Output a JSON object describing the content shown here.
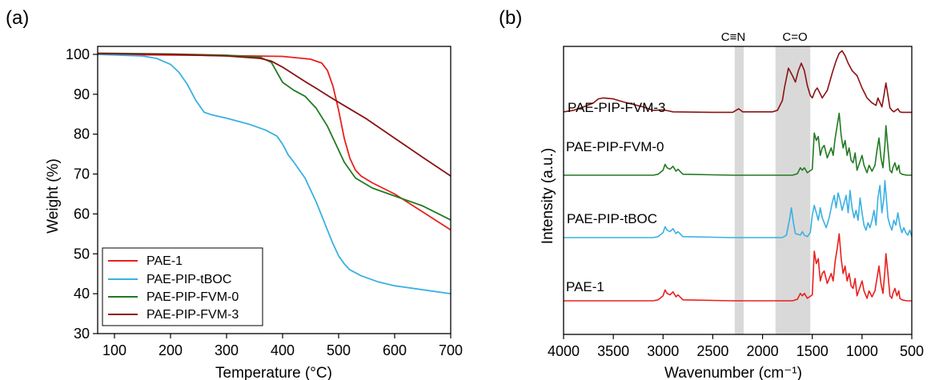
{
  "panels": {
    "a": {
      "label": "(a)"
    },
    "b": {
      "label": "(b)"
    }
  },
  "chart_data": [
    {
      "type": "line",
      "panel": "(a)",
      "xlabel": "Temperature (°C)",
      "ylabel": "Weight (%)",
      "xlim": [
        70,
        700
      ],
      "ylim": [
        30,
        102
      ],
      "xticks": [
        100,
        200,
        300,
        400,
        500,
        600,
        700
      ],
      "yticks": [
        30,
        40,
        50,
        60,
        70,
        80,
        90,
        100
      ],
      "legend_position": "bottom-left",
      "series": [
        {
          "name": "PAE-1",
          "color": "#e8201d",
          "x": [
            70,
            150,
            300,
            400,
            450,
            470,
            480,
            490,
            500,
            510,
            520,
            530,
            540,
            560,
            600,
            650,
            700
          ],
          "y": [
            100,
            99.9,
            99.7,
            99.5,
            98.8,
            97.8,
            96,
            92,
            86,
            79,
            74,
            71,
            69.5,
            67.8,
            65,
            60.5,
            56
          ]
        },
        {
          "name": "PAE-PIP-tBOC",
          "color": "#3ab0e2",
          "x": [
            70,
            150,
            175,
            200,
            215,
            230,
            245,
            260,
            275,
            300,
            340,
            370,
            390,
            400,
            410,
            420,
            430,
            440,
            450,
            460,
            470,
            480,
            490,
            500,
            510,
            520,
            540,
            570,
            600,
            650,
            700
          ],
          "y": [
            100,
            99.6,
            99,
            97.5,
            95.5,
            92.5,
            88.5,
            85.5,
            84.8,
            84,
            82.5,
            81,
            79.5,
            77.5,
            74.8,
            73,
            71,
            69,
            66,
            63,
            59.5,
            56,
            52.5,
            49.5,
            47.5,
            46,
            44.5,
            43,
            42,
            41,
            40
          ]
        },
        {
          "name": "PAE-PIP-FVM-0",
          "color": "#217a21",
          "x": [
            70,
            200,
            300,
            360,
            380,
            390,
            400,
            420,
            440,
            460,
            480,
            500,
            510,
            530,
            560,
            600,
            650,
            700
          ],
          "y": [
            100.3,
            100.1,
            99.8,
            99.3,
            98,
            95.5,
            93,
            91,
            89.5,
            86.5,
            82,
            76,
            73,
            69,
            66.5,
            64.5,
            62,
            58.5
          ]
        },
        {
          "name": "PAE-PIP-FVM-3",
          "color": "#8b1212",
          "x": [
            70,
            200,
            300,
            360,
            380,
            400,
            420,
            440,
            460,
            480,
            500,
            550,
            600,
            650,
            700
          ],
          "y": [
            100.2,
            100,
            99.6,
            99,
            98.3,
            96.8,
            95,
            93.2,
            91.5,
            89.7,
            88,
            83.8,
            79,
            74.2,
            69.5
          ]
        }
      ]
    },
    {
      "type": "line",
      "panel": "(b)",
      "xlabel": "Wavenumber (cm⁻¹)",
      "ylabel": "Intensity (a.u.)",
      "xlim": [
        4000,
        500
      ],
      "x_reversed": true,
      "xticks": [
        4000,
        3500,
        3000,
        2500,
        2000,
        1500,
        1000,
        500
      ],
      "y_ticks_shown": false,
      "shaded_bands": [
        {
          "label": "C≡N",
          "range": [
            2280,
            2190
          ]
        },
        {
          "label": "C=O",
          "range": [
            1870,
            1520
          ]
        }
      ],
      "series": [
        {
          "name": "PAE-PIP-FVM-3",
          "color": "#8b1212",
          "offset": 3,
          "x": [
            4000,
            3900,
            3800,
            3700,
            3650,
            3600,
            3500,
            3400,
            3200,
            3100,
            3000,
            2950,
            2900,
            2500,
            2300,
            2240,
            2200,
            1900,
            1850,
            1800,
            1780,
            1740,
            1700,
            1670,
            1640,
            1610,
            1580,
            1550,
            1520,
            1500,
            1470,
            1450,
            1420,
            1400,
            1350,
            1300,
            1260,
            1230,
            1200,
            1170,
            1140,
            1100,
            1050,
            1000,
            950,
            900,
            860,
            840,
            800,
            780,
            760,
            740,
            720,
            700,
            680,
            640,
            620,
            600,
            550,
            500
          ],
          "y": [
            0.02,
            0.05,
            0.12,
            0.2,
            0.28,
            0.3,
            0.28,
            0.22,
            0.12,
            0.05,
            0.06,
            0.04,
            0.02,
            0.01,
            0.01,
            0.08,
            0.02,
            0.02,
            0.05,
            0.25,
            0.5,
            0.9,
            0.75,
            0.62,
            0.85,
            1.0,
            0.85,
            0.55,
            0.35,
            0.3,
            0.45,
            0.5,
            0.38,
            0.3,
            0.45,
            0.8,
            1.05,
            1.2,
            1.25,
            1.15,
            1.0,
            0.85,
            0.75,
            0.5,
            0.3,
            0.2,
            0.15,
            0.3,
            0.12,
            0.35,
            0.6,
            0.35,
            0.1,
            0.05,
            0.02,
            0.08,
            0.02,
            0.01,
            0.01,
            0.01
          ]
        },
        {
          "name": "PAE-PIP-FVM-0",
          "color": "#217a21",
          "offset": 2,
          "x": [
            4000,
            3100,
            3050,
            3000,
            2980,
            2960,
            2930,
            2900,
            2870,
            2850,
            2800,
            2300,
            1700,
            1650,
            1620,
            1600,
            1580,
            1550,
            1500,
            1480,
            1460,
            1440,
            1420,
            1400,
            1380,
            1350,
            1310,
            1290,
            1270,
            1250,
            1230,
            1210,
            1190,
            1170,
            1150,
            1130,
            1110,
            1090,
            1070,
            1050,
            1020,
            1000,
            980,
            950,
            930,
            900,
            870,
            850,
            830,
            810,
            790,
            770,
            760,
            740,
            720,
            700,
            690,
            670,
            650,
            630,
            620,
            600,
            550,
            500
          ],
          "y": [
            0,
            0,
            0.02,
            0.1,
            0.22,
            0.15,
            0.12,
            0.18,
            0.08,
            0.12,
            0.02,
            0,
            0,
            0.03,
            0.15,
            0.1,
            0.15,
            0.05,
            0.12,
            0.85,
            0.7,
            0.78,
            0.4,
            0.55,
            0.6,
            0.35,
            0.55,
            0.4,
            0.75,
            1.0,
            1.25,
            0.8,
            0.55,
            0.7,
            0.4,
            0.55,
            0.3,
            0.25,
            0.45,
            0.1,
            0.28,
            0.4,
            0.2,
            0.05,
            0.2,
            0.08,
            0.2,
            0.5,
            0.75,
            0.35,
            0.15,
            0.6,
            1.0,
            0.55,
            0.1,
            0.05,
            0.15,
            0.25,
            0.1,
            0.2,
            0.05,
            0.02,
            0,
            0
          ]
        },
        {
          "name": "PAE-PIP-tBOC",
          "color": "#3ab0e2",
          "offset": 1,
          "x": [
            4000,
            3100,
            3050,
            3000,
            2980,
            2960,
            2930,
            2900,
            2870,
            2850,
            2800,
            2300,
            1800,
            1760,
            1730,
            1710,
            1690,
            1670,
            1620,
            1600,
            1580,
            1550,
            1520,
            1500,
            1480,
            1460,
            1440,
            1420,
            1400,
            1380,
            1360,
            1330,
            1300,
            1280,
            1260,
            1240,
            1220,
            1200,
            1180,
            1160,
            1140,
            1120,
            1100,
            1080,
            1060,
            1040,
            1020,
            1000,
            980,
            960,
            940,
            920,
            900,
            880,
            860,
            840,
            820,
            800,
            780,
            770,
            760,
            740,
            720,
            700,
            680,
            660,
            640,
            620,
            600,
            580,
            560,
            540,
            520,
            500
          ],
          "y": [
            0,
            0,
            0.02,
            0.1,
            0.22,
            0.15,
            0.12,
            0.18,
            0.08,
            0.12,
            0.02,
            0,
            0,
            0.05,
            0.35,
            0.6,
            0.3,
            0.08,
            0.05,
            0.12,
            0.05,
            0.02,
            0.1,
            0.45,
            0.65,
            0.5,
            0.35,
            0.6,
            0.4,
            0.3,
            0.2,
            0.4,
            0.7,
            0.85,
            0.6,
            0.9,
            0.75,
            0.55,
            0.7,
            0.85,
            0.5,
            0.95,
            0.6,
            0.4,
            0.55,
            0.35,
            0.8,
            0.5,
            0.25,
            0.15,
            0.3,
            0.2,
            0.35,
            0.55,
            0.25,
            0.8,
            1.05,
            0.5,
            0.8,
            1.15,
            0.9,
            0.4,
            0.25,
            0.15,
            0.35,
            0.25,
            0.5,
            0.25,
            0.1,
            0.2,
            0.1,
            0.05,
            0.15,
            0.02
          ]
        },
        {
          "name": "PAE-1",
          "color": "#e8201d",
          "offset": 0,
          "x": [
            4000,
            3100,
            3050,
            3000,
            2980,
            2960,
            2930,
            2900,
            2870,
            2850,
            2800,
            2300,
            1700,
            1650,
            1620,
            1600,
            1580,
            1550,
            1500,
            1480,
            1460,
            1440,
            1420,
            1400,
            1380,
            1350,
            1310,
            1290,
            1270,
            1250,
            1230,
            1210,
            1190,
            1170,
            1150,
            1130,
            1110,
            1090,
            1070,
            1050,
            1020,
            1000,
            980,
            950,
            930,
            900,
            870,
            850,
            830,
            810,
            790,
            770,
            760,
            740,
            720,
            700,
            690,
            670,
            650,
            630,
            620,
            600,
            550,
            500
          ],
          "y": [
            0,
            0,
            0.02,
            0.1,
            0.22,
            0.15,
            0.12,
            0.18,
            0.08,
            0.12,
            0.02,
            0,
            0,
            0.03,
            0.15,
            0.1,
            0.15,
            0.05,
            0.12,
            1.0,
            0.75,
            0.85,
            0.4,
            0.55,
            0.6,
            0.35,
            0.55,
            0.4,
            0.8,
            1.05,
            1.35,
            0.85,
            0.55,
            0.7,
            0.4,
            0.55,
            0.3,
            0.25,
            0.45,
            0.1,
            0.28,
            0.4,
            0.2,
            0.05,
            0.2,
            0.08,
            0.2,
            0.45,
            0.7,
            0.35,
            0.15,
            0.6,
            0.95,
            0.55,
            0.1,
            0.05,
            0.15,
            0.25,
            0.1,
            0.2,
            0.05,
            0.02,
            0,
            0
          ]
        }
      ]
    }
  ]
}
